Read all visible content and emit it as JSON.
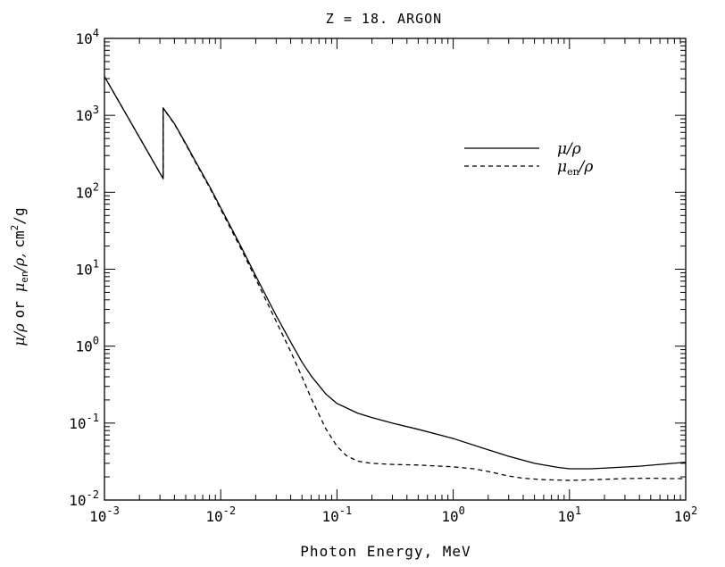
{
  "chart_data": {
    "type": "line",
    "title": "Z = 18.  ARGON",
    "xlabel": "Photon Energy, MeV",
    "ylabel_parts": {
      "mu_rho": "μ/ρ",
      "or": "or",
      "mu": "μ",
      "en_subscript": "en",
      "rho_tail": "/ρ,",
      "units": "cm",
      "units_exp": "2",
      "units_tail": "/g"
    },
    "x_scale": "log",
    "y_scale": "log",
    "xlim": [
      0.001,
      100
    ],
    "ylim": [
      0.01,
      10000
    ],
    "x_ticks": [
      {
        "base": "10",
        "exp": "-3"
      },
      {
        "base": "10",
        "exp": "-2"
      },
      {
        "base": "10",
        "exp": "-1"
      },
      {
        "base": "10",
        "exp": "0"
      },
      {
        "base": "10",
        "exp": "1"
      },
      {
        "base": "10",
        "exp": "2"
      }
    ],
    "y_ticks": [
      {
        "base": "10",
        "exp": "-2"
      },
      {
        "base": "10",
        "exp": "-1"
      },
      {
        "base": "10",
        "exp": "0"
      },
      {
        "base": "10",
        "exp": "1"
      },
      {
        "base": "10",
        "exp": "2"
      },
      {
        "base": "10",
        "exp": "3"
      },
      {
        "base": "10",
        "exp": "4"
      }
    ],
    "legend": {
      "position": "upper-right",
      "entries": [
        {
          "series": "mu_rho",
          "label_main": "μ/ρ",
          "label_sub": "",
          "label_tail": "",
          "style": "solid"
        },
        {
          "series": "mu_en_rho",
          "label_main": "μ",
          "label_sub": "en",
          "label_tail": "/ρ",
          "style": "dashed"
        }
      ]
    },
    "series": [
      {
        "name": "mu/rho",
        "style": "solid",
        "points": [
          [
            0.001,
            3200
          ],
          [
            0.0032,
            150
          ],
          [
            0.0032,
            1250
          ],
          [
            0.004,
            780
          ],
          [
            0.005,
            430
          ],
          [
            0.006,
            260
          ],
          [
            0.008,
            120
          ],
          [
            0.01,
            63
          ],
          [
            0.015,
            19.5
          ],
          [
            0.02,
            8.2
          ],
          [
            0.03,
            2.5
          ],
          [
            0.04,
            1.13
          ],
          [
            0.05,
            0.62
          ],
          [
            0.06,
            0.41
          ],
          [
            0.08,
            0.24
          ],
          [
            0.1,
            0.18
          ],
          [
            0.15,
            0.135
          ],
          [
            0.2,
            0.118
          ],
          [
            0.3,
            0.1
          ],
          [
            0.5,
            0.083
          ],
          [
            0.8,
            0.069
          ],
          [
            1.0,
            0.063
          ],
          [
            2.0,
            0.045
          ],
          [
            3.0,
            0.037
          ],
          [
            5.0,
            0.03
          ],
          [
            8.0,
            0.0265
          ],
          [
            10,
            0.0255
          ],
          [
            15,
            0.0255
          ],
          [
            20,
            0.026
          ],
          [
            40,
            0.0275
          ],
          [
            60,
            0.029
          ],
          [
            100,
            0.031
          ]
        ]
      },
      {
        "name": "mu_en/rho",
        "style": "dashed",
        "points": [
          [
            0.001,
            3200
          ],
          [
            0.0032,
            150
          ],
          [
            0.0032,
            1230
          ],
          [
            0.004,
            770
          ],
          [
            0.005,
            420
          ],
          [
            0.006,
            252
          ],
          [
            0.008,
            116
          ],
          [
            0.01,
            60
          ],
          [
            0.015,
            18.3
          ],
          [
            0.02,
            7.5
          ],
          [
            0.03,
            2.1
          ],
          [
            0.04,
            0.85
          ],
          [
            0.05,
            0.4
          ],
          [
            0.06,
            0.21
          ],
          [
            0.08,
            0.085
          ],
          [
            0.1,
            0.05
          ],
          [
            0.12,
            0.038
          ],
          [
            0.15,
            0.032
          ],
          [
            0.2,
            0.03
          ],
          [
            0.3,
            0.029
          ],
          [
            0.5,
            0.0285
          ],
          [
            0.8,
            0.0275
          ],
          [
            1.0,
            0.027
          ],
          [
            1.5,
            0.0255
          ],
          [
            2.0,
            0.0235
          ],
          [
            3.0,
            0.0205
          ],
          [
            4.0,
            0.0192
          ],
          [
            6.0,
            0.0184
          ],
          [
            10,
            0.018
          ],
          [
            15,
            0.0183
          ],
          [
            20,
            0.0186
          ],
          [
            30,
            0.019
          ],
          [
            50,
            0.0192
          ],
          [
            70,
            0.019
          ],
          [
            100,
            0.019
          ]
        ]
      }
    ]
  }
}
